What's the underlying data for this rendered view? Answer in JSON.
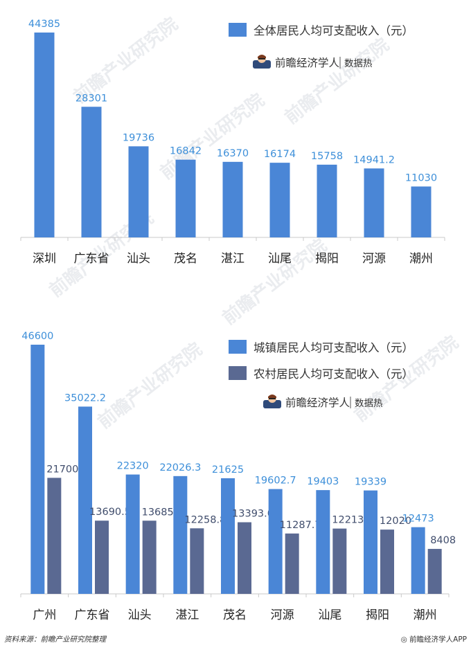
{
  "colors": {
    "blue": "#4a86d6",
    "dark": "#5a6992",
    "label_blue": "#3d8fd9",
    "label_dark": "#404d6c",
    "axis": "#c9c9c9",
    "text": "#222222"
  },
  "brand": {
    "name": "前瞻经济学人",
    "suffix": "数据热"
  },
  "watermark_text": "前瞻产业研究院",
  "footer": {
    "source": "资料来源：前瞻产业研究院整理",
    "app": "◎ 前瞻经济学人APP"
  },
  "chart_data": [
    {
      "type": "bar",
      "categories": [
        "深圳",
        "广东省",
        "汕头",
        "茂名",
        "湛江",
        "汕尾",
        "揭阳",
        "河源",
        "潮州"
      ],
      "series": [
        {
          "name": "全体居民人均可支配收入（元）",
          "values": [
            44385,
            28301,
            19736,
            16842,
            16370,
            16174,
            15758,
            14941.2,
            11030
          ],
          "labels": [
            "44385",
            "28301",
            "19736",
            "16842",
            "16370",
            "16174",
            "15758",
            "14941.2",
            "11030"
          ],
          "color": "#4a86d6"
        }
      ],
      "ylim": [
        0,
        50000
      ],
      "legend": "top-right",
      "grid": false
    },
    {
      "type": "bar",
      "categories": [
        "广州",
        "广东省",
        "汕头",
        "湛江",
        "茂名",
        "河源",
        "汕尾",
        "揭阳",
        "潮州"
      ],
      "series": [
        {
          "name": "城镇居民人均可支配收入（元）",
          "values": [
            46600,
            35022.2,
            22320,
            22026.3,
            21625,
            19602.7,
            19403,
            19339,
            12473
          ],
          "labels": [
            "46600",
            "35022.2",
            "22320",
            "22026.3",
            "21625",
            "19602.7",
            "19403",
            "19339",
            "12473"
          ],
          "color": "#4a86d6"
        },
        {
          "name": "农村居民人均可支配收入（元）",
          "values": [
            21700,
            13690.5,
            13685,
            12258.8,
            13393.0,
            11287.7,
            12213,
            12020,
            8408
          ],
          "labels": [
            "21700",
            "13690.5",
            "13685",
            "12258.8",
            "13393.0",
            "11287.7",
            "12213",
            "12020",
            "8408"
          ],
          "color": "#5a6992"
        }
      ],
      "ylim": [
        0,
        50000
      ],
      "legend": "top-right",
      "grid": false
    }
  ]
}
